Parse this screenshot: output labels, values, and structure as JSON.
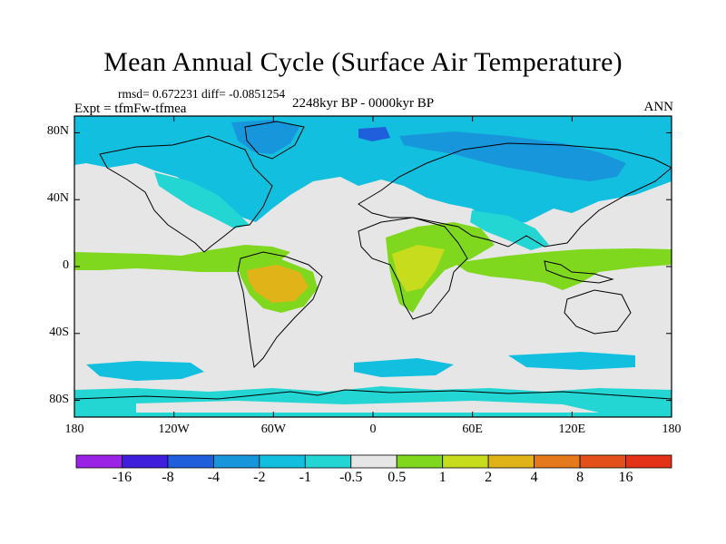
{
  "title": "Mean Annual Cycle (Surface Air Temperature)",
  "stats_text": "rmsd= 0.672231 diff= -0.0851254",
  "experiment_label": "Expt = tfmFw-tfmea",
  "period_label": "2248kyr BP - 0000kyr BP",
  "season_label": "ANN",
  "lat_ticks": [
    {
      "value": 80,
      "label": "80N"
    },
    {
      "value": 40,
      "label": "40N"
    },
    {
      "value": 0,
      "label": "0"
    },
    {
      "value": -40,
      "label": "40S"
    },
    {
      "value": -80,
      "label": "80S"
    }
  ],
  "lon_ticks": [
    {
      "value": -180,
      "label": "180"
    },
    {
      "value": -120,
      "label": "120W"
    },
    {
      "value": -60,
      "label": "60W"
    },
    {
      "value": 0,
      "label": "0"
    },
    {
      "value": 60,
      "label": "60E"
    },
    {
      "value": 120,
      "label": "120E"
    },
    {
      "value": 180,
      "label": "180"
    }
  ],
  "colorbar": {
    "levels": [
      "-16",
      "-8",
      "-4",
      "-2",
      "-1",
      "-0.5",
      "0.5",
      "1",
      "2",
      "4",
      "8",
      "16"
    ],
    "colors": [
      "#9a23e6",
      "#3f1fdc",
      "#1f5fdc",
      "#1896dc",
      "#13bfdf",
      "#23d6d4",
      "#e6e6e6",
      "#7fd81e",
      "#c7dc1c",
      "#e0b418",
      "#e47a1b",
      "#e4501a",
      "#e43218"
    ]
  },
  "colors": {
    "background_field": "#e6e6e6",
    "warm_light": "#7fd81e",
    "warm_mid": "#c7dc1c",
    "warm_strong": "#e0b418",
    "cool_light": "#23d6d4",
    "cool_mid": "#13bfdf",
    "cool_strong": "#1896dc",
    "cool_deep": "#1f5fdc"
  }
}
